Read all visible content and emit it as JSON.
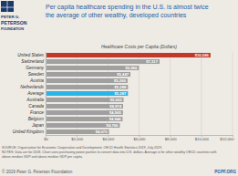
{
  "chart_data": {
    "type": "bar",
    "orientation": "horizontal",
    "title": [
      "Per capita healthcare spending in the U.S. is almost twice",
      "the average of other wealthy, developed countries"
    ],
    "subtitle": "Healthcare Costs per Capita (Dollars)",
    "categories": [
      "United States",
      "Switzerland",
      "Germany",
      "Sweden",
      "Austria",
      "Netherlands",
      "Average",
      "Australia",
      "Canada",
      "France",
      "Belgium",
      "Japan",
      "United Kingdom"
    ],
    "values": [
      10586,
      7317,
      5986,
      5447,
      5260,
      5288,
      5287,
      5005,
      4974,
      4965,
      4944,
      4766,
      4070
    ],
    "value_labels": [
      "$10,586",
      "$7,317",
      "$5,986",
      "$5,447",
      "$5,260",
      "$5,288",
      "$5,287",
      "$5,005",
      "$4,974",
      "$4,965",
      "$4,944",
      "$4,766",
      "$4,070"
    ],
    "data_labels": true,
    "colors": [
      "#c0392b",
      "#a0a0a0",
      "#a0a0a0",
      "#a0a0a0",
      "#a0a0a0",
      "#a0a0a0",
      "#29b5e8",
      "#a0a0a0",
      "#a0a0a0",
      "#a0a0a0",
      "#a0a0a0",
      "#a0a0a0",
      "#a0a0a0"
    ],
    "xlim": [
      0,
      12000
    ],
    "xticks": [
      {
        "value": 0,
        "label": "$0"
      },
      {
        "value": 2000,
        "label": "$2,000"
      },
      {
        "value": 4000,
        "label": "$4,000"
      },
      {
        "value": 6000,
        "label": "$6,000"
      },
      {
        "value": 8000,
        "label": "$8,000"
      },
      {
        "value": 10000,
        "label": "$10,000"
      },
      {
        "value": 12000,
        "label": "$12,000"
      }
    ],
    "grid": true,
    "annotations": [
      "PETER G.",
      "PETERSON",
      "FOUNDATION",
      "SOURCE: Organisation for Economic Cooperation and Development, OECD Health Statistics 2019, July 2019.",
      "NOTES: Data are for 2018. Chart uses purchasing power parities to convert data into U.S. dollars. Average is for other wealthy OECD countries with",
      "above-median GDP and above-median GDP per capita.",
      "© 2019 Peter G. Peterson Foundation",
      "PGPF.ORG"
    ]
  }
}
